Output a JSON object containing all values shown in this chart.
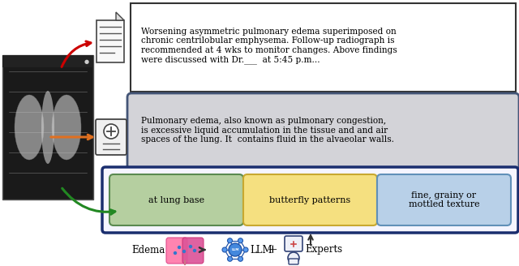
{
  "fig_width": 6.4,
  "fig_height": 3.28,
  "bg_color": "#ffffff",
  "report_text": "Worsening asymmetric pulmonary edema superimposed on\nchronic centrilobular emphysema. Follow-up radiograph is\nrecommended at 4 wks to monitor changes. Above findings\nwere discussed with Dr.___  at 5:45 p.m...",
  "report_box_color": "#ffffff",
  "report_box_edge": "#333333",
  "knowledge_text": "Pulmonary edema, also known as pulmonary congestion,\nis excessive liquid accumulation in the tissue and and air\nspaces of the lung. It  contains fluid in the alvaeolar walls.",
  "knowledge_box_color": "#d3d3d8",
  "knowledge_box_edge": "#445577",
  "aspects_box_edge": "#1a2e6e",
  "aspect1_text": "at lung base",
  "aspect1_color": "#b5cfa0",
  "aspect1_edge": "#5a8a50",
  "aspect2_text": "butterfly patterns",
  "aspect2_color": "#f5e080",
  "aspect2_edge": "#c8a830",
  "aspect3_text": "fine, grainy or\nmottled texture",
  "aspect3_color": "#b8d0e8",
  "aspect3_edge": "#6090b8",
  "arrow_red": "#cc0000",
  "arrow_orange": "#e07020",
  "arrow_green": "#228822",
  "arrow_dark": "#333333"
}
